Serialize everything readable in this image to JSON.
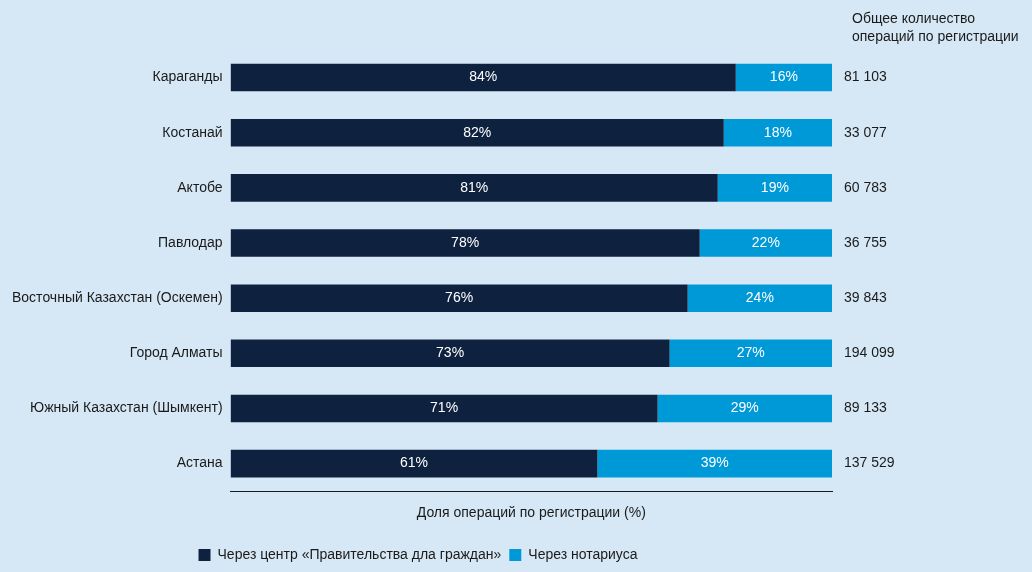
{
  "chart_data": {
    "type": "bar",
    "orientation": "horizontal",
    "stacked": true,
    "categories": [
      "Караганды",
      "Костанай",
      "Актобе",
      "Павлодар",
      "Восточный Казахстан (Оскемен)",
      "Город Алматы",
      "Южный Казахстан (Шымкент)",
      "Астана"
    ],
    "series": [
      {
        "name": "Через центр «Правительства дла граждан»",
        "color": "#0e2240",
        "values": [
          84,
          82,
          81,
          78,
          76,
          73,
          71,
          61
        ],
        "value_labels": [
          "84%",
          "82%",
          "81%",
          "78%",
          "76%",
          "73%",
          "71%",
          "61%"
        ]
      },
      {
        "name": "Через нотариуса",
        "color": "#0099d8",
        "values": [
          16,
          18,
          19,
          22,
          24,
          27,
          29,
          39
        ],
        "value_labels": [
          "16%",
          "18%",
          "19%",
          "22%",
          "24%",
          "27%",
          "29%",
          "39%"
        ]
      }
    ],
    "xlim": [
      0,
      100
    ],
    "xlabel": "Доля операций по регистрации (%)",
    "tick_labels": "y",
    "annotations": [
      "Общее количество операций по регистрации",
      "81 103",
      "33 077",
      "60 783",
      "36 755",
      "39 843",
      "194 099",
      "89 133",
      "137 529"
    ],
    "legend": "bottom"
  }
}
